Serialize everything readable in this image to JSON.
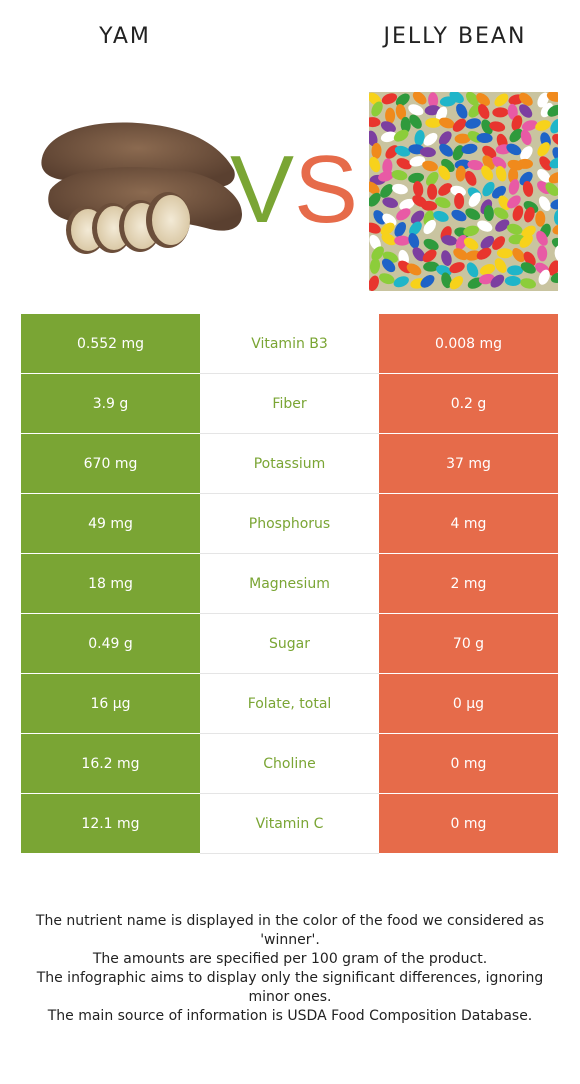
{
  "header": {
    "left_title": "YAM",
    "right_title": "JELLY BEAN",
    "vs_left": "V",
    "vs_right": "S"
  },
  "colors": {
    "winner_left": "#7aa534",
    "winner_right": "#e66b4a"
  },
  "rows": [
    {
      "left": "0.552 mg",
      "nutrient": "Vitamin B3",
      "right": "0.008 mg"
    },
    {
      "left": "3.9 g",
      "nutrient": "Fiber",
      "right": "0.2 g"
    },
    {
      "left": "670 mg",
      "nutrient": "Potassium",
      "right": "37 mg"
    },
    {
      "left": "49 mg",
      "nutrient": "Phosphorus",
      "right": "4 mg"
    },
    {
      "left": "18 mg",
      "nutrient": "Magnesium",
      "right": "2 mg"
    },
    {
      "left": "0.49 g",
      "nutrient": "Sugar",
      "right": "70 g"
    },
    {
      "left": "16 µg",
      "nutrient": "Folate, total",
      "right": "0 µg"
    },
    {
      "left": "16.2 mg",
      "nutrient": "Choline",
      "right": "0 mg"
    },
    {
      "left": "12.1 mg",
      "nutrient": "Vitamin C",
      "right": "0 mg"
    }
  ],
  "footer": [
    "The nutrient name is displayed in the color of the food we considered as 'winner'.",
    "The amounts are specified per 100 gram of the product.",
    "The infographic aims to display only the significant differences, ignoring minor ones.",
    "The main source of information is USDA Food Composition Database."
  ]
}
